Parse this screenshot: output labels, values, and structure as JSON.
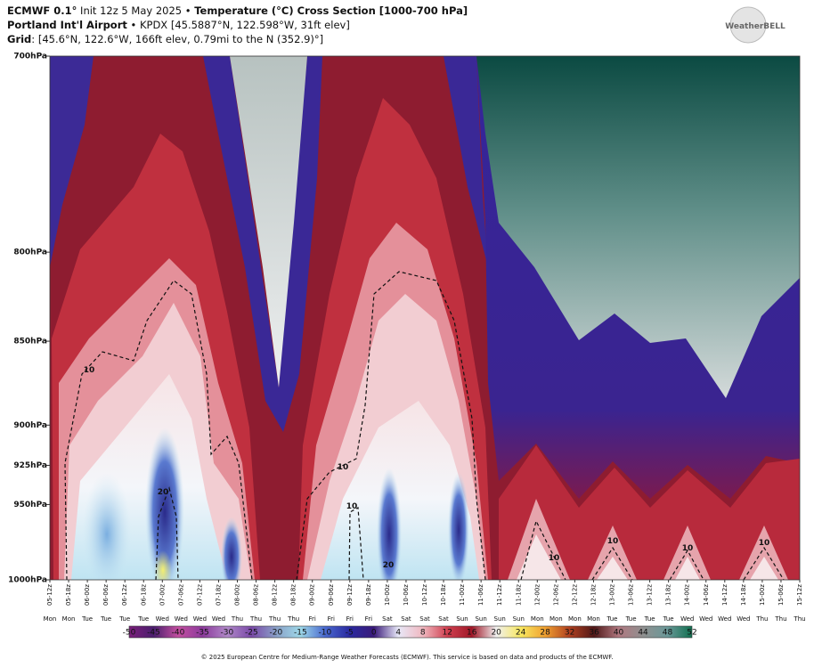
{
  "chart_data": {
    "type": "contour",
    "title_parts": [
      "ECMWF 0.1°",
      " Init 12z 5 May 2025 • ",
      "Temperature (°C) Cross Section [1000-700 hPa]"
    ],
    "subtitle_parts": [
      "Portland Int'l Airport",
      " • KPDX [45.5887°N, 122.598°W, 31ft elev]"
    ],
    "grid_parts": [
      "Grid",
      ": [45.6°N, 122.6°W, 166ft elev, 0.79mi to the N (352.9)°]"
    ],
    "logo": "WeatherBELL",
    "yscale": "log",
    "ylim": [
      1000,
      700
    ],
    "yticks": [
      {
        "value": 700,
        "label": "700hPa"
      },
      {
        "value": 800,
        "label": "800hPa"
      },
      {
        "value": 850,
        "label": "850hPa"
      },
      {
        "value": 900,
        "label": "900hPa"
      },
      {
        "value": 925,
        "label": "925hPa"
      },
      {
        "value": 950,
        "label": "950hPa"
      },
      {
        "value": 1000,
        "label": "1000hPa"
      }
    ],
    "categories": [
      "05-12z",
      "05-18z",
      "06-00z",
      "06-06z",
      "06-12z",
      "06-18z",
      "07-00z",
      "07-06z",
      "07-12z",
      "07-18z",
      "08-00z",
      "08-06z",
      "08-12z",
      "08-18z",
      "09-00z",
      "09-06z",
      "09-12z",
      "09-18z",
      "10-00z",
      "10-06z",
      "10-12z",
      "10-18z",
      "11-00z",
      "11-06z",
      "11-12z",
      "11-18z",
      "12-00z",
      "12-06z",
      "12-12z",
      "12-18z",
      "13-00z",
      "13-06z",
      "13-12z",
      "13-18z",
      "14-00z",
      "14-06z",
      "14-12z",
      "14-18z",
      "15-00z",
      "15-06z",
      "15-12z"
    ],
    "day_labels": [
      "Mon",
      "Mon",
      "Tue",
      "Tue",
      "Tue",
      "Tue",
      "Wed",
      "Wed",
      "Wed",
      "Wed",
      "Thu",
      "Thu",
      "Thu",
      "Thu",
      "Fri",
      "Fri",
      "Fri",
      "Fri",
      "Sat",
      "Sat",
      "Sat",
      "Sat",
      "Sun",
      "Sun",
      "Sun",
      "Sun",
      "Mon",
      "Mon",
      "Mon",
      "Mon",
      "Tue",
      "Tue",
      "Tue",
      "Tue",
      "Wed",
      "Wed",
      "Wed",
      "Wed",
      "Thu",
      "Thu",
      "Thu"
    ],
    "contour_labels": [
      10,
      20,
      10,
      10,
      20,
      10,
      10,
      10,
      10
    ],
    "colorbar": {
      "ticks": [
        -50,
        -45,
        -40,
        -35,
        -30,
        -25,
        -20,
        -15,
        -10,
        -5,
        0,
        4,
        8,
        12,
        16,
        20,
        24,
        28,
        32,
        36,
        40,
        44,
        48,
        52
      ],
      "colors": [
        "#7b1f7b",
        "#4b1e6e",
        "#c44fa0",
        "#8c3a9c",
        "#b088c8",
        "#7a4aa8",
        "#8aa0c8",
        "#9ed8e8",
        "#4a6ad0",
        "#2a2aa0",
        "#3a1a7a",
        "#e8e8f8",
        "#f0b8c0",
        "#d04050",
        "#a01828",
        "#f0f0f0",
        "#f8e860",
        "#f0a030",
        "#b04020",
        "#501818",
        "#b07880",
        "#909090",
        "#6a9898",
        "#107050"
      ]
    },
    "footer": "© 2025 European Centre for Medium-Range Weather Forecasts (ECMWF). This service is based on data and products of the ECMWF."
  }
}
